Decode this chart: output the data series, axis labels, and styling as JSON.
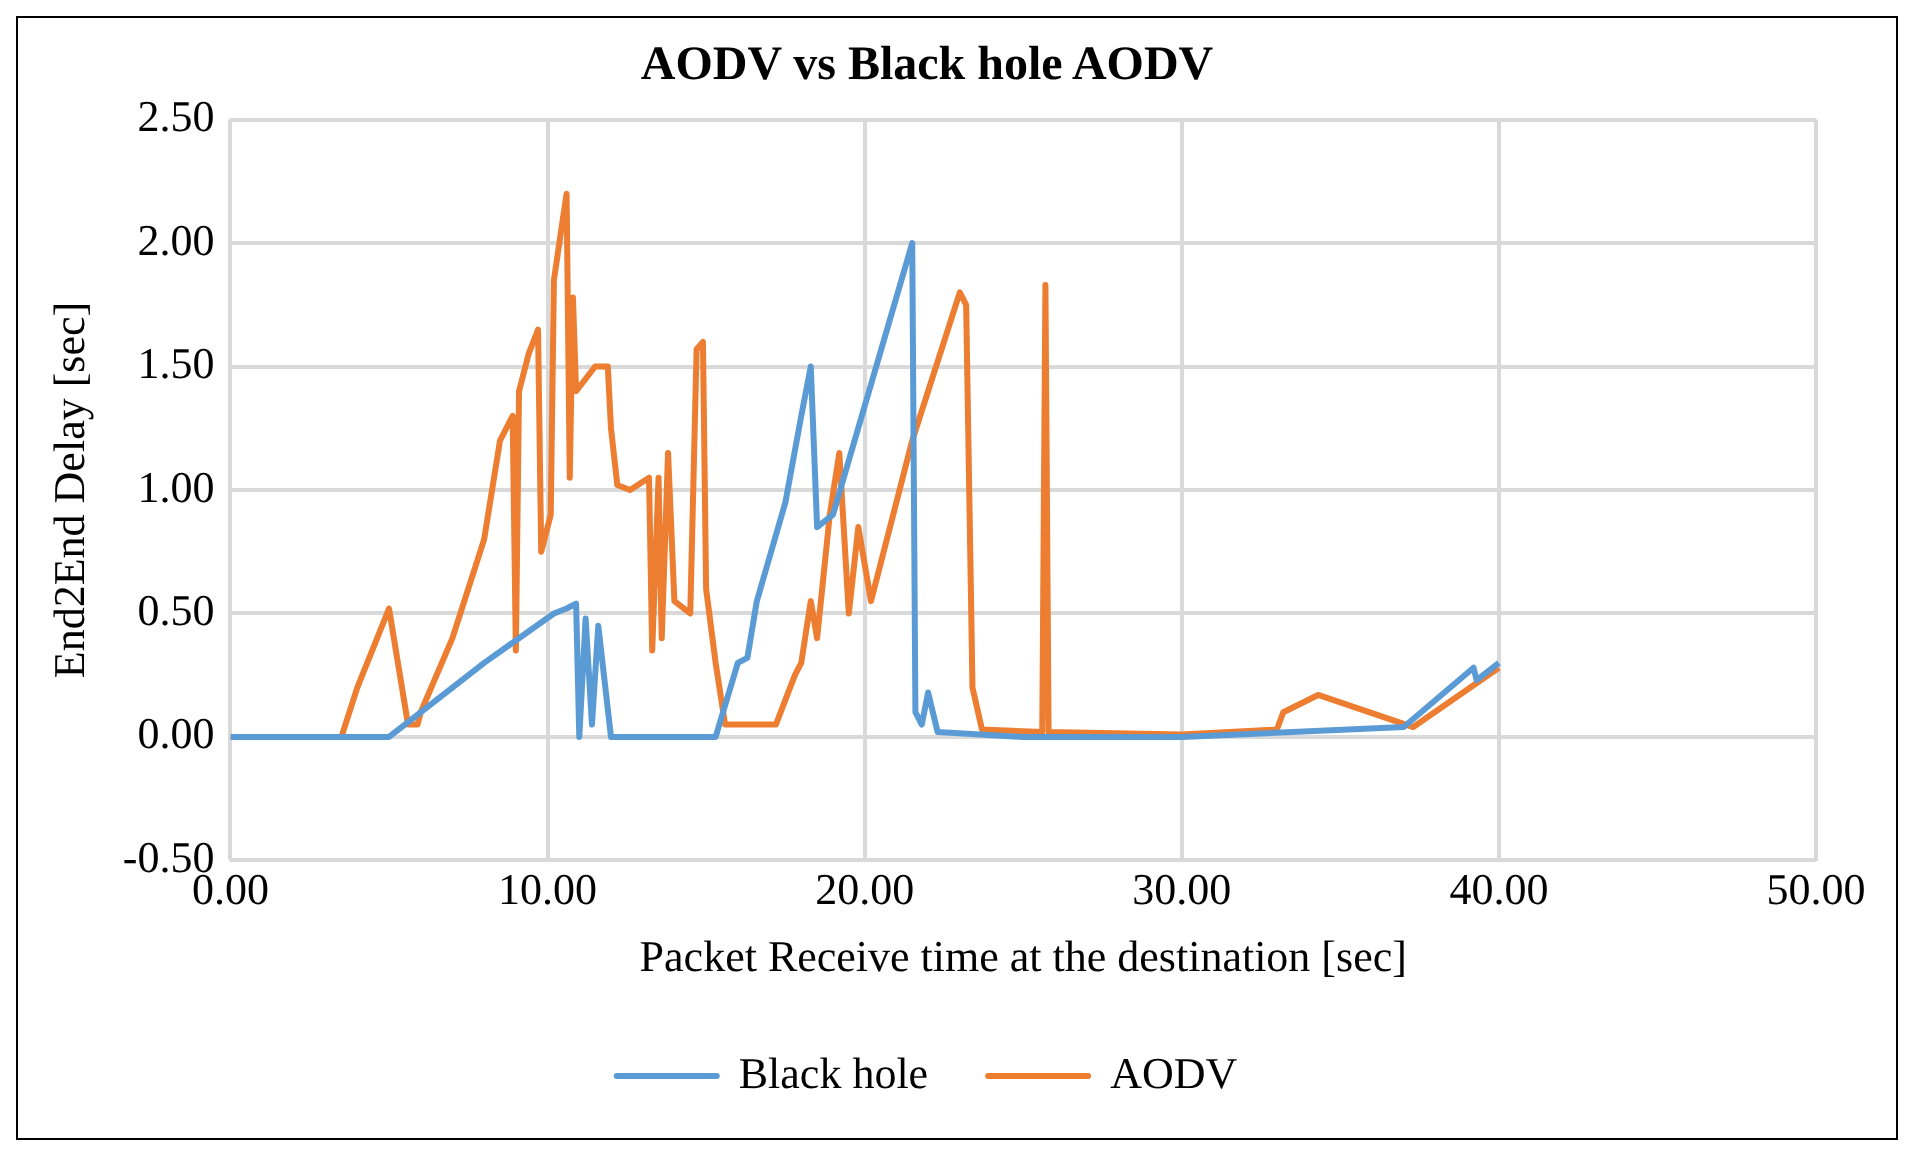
{
  "chart_data": {
    "type": "line",
    "title": "AODV vs Black hole AODV",
    "xlabel": "Packet Receive time at the destination [sec]",
    "ylabel": "End2End Delay [sec]",
    "xlim": [
      0,
      50
    ],
    "xticks": [
      {
        "value": 0,
        "label": "0.00"
      },
      {
        "value": 10,
        "label": "10.00"
      },
      {
        "value": 20,
        "label": "20.00"
      },
      {
        "value": 30,
        "label": "30.00"
      },
      {
        "value": 40,
        "label": "40.00"
      },
      {
        "value": 50,
        "label": "50.00"
      }
    ],
    "ylim": [
      -0.5,
      2.5
    ],
    "yticks": [
      {
        "value": -0.5,
        "label": "-0.50"
      },
      {
        "value": 0,
        "label": "0.00"
      },
      {
        "value": 0.5,
        "label": "0.50"
      },
      {
        "value": 1,
        "label": "1.00"
      },
      {
        "value": 1.5,
        "label": "1.50"
      },
      {
        "value": 2,
        "label": "2.00"
      },
      {
        "value": 2.5,
        "label": "2.50"
      }
    ],
    "grid": true,
    "legend": "bottom",
    "marker": "none",
    "series": [
      {
        "name": "Black hole",
        "color": "#5b9bd5",
        "x": [
          0,
          5.0,
          5.5,
          8,
          10.2,
          10.6,
          10.9,
          11.0,
          11.2,
          11.4,
          11.6,
          12.0,
          15.3,
          16.0,
          16.3,
          16.6,
          17.5,
          18.0,
          18.3,
          18.5,
          19.0,
          21.5,
          21.6,
          21.8,
          22.0,
          22.3,
          25,
          30,
          37,
          39.2,
          39.3,
          40
        ],
        "values": [
          0,
          0,
          0.05,
          0.3,
          0.5,
          0.52,
          0.54,
          0,
          0.48,
          0.05,
          0.45,
          0,
          0,
          0.3,
          0.32,
          0.55,
          0.95,
          1.3,
          1.5,
          0.85,
          0.9,
          2.0,
          0.1,
          0.05,
          0.18,
          0.02,
          0,
          0,
          0.04,
          0.28,
          0.23,
          0.3
        ]
      },
      {
        "name": "AODV",
        "color": "#ed7d31",
        "x": [
          0,
          3.5,
          4.0,
          5.0,
          5.6,
          5.9,
          6.0,
          7.0,
          8.0,
          8.5,
          8.9,
          9.0,
          9.1,
          9.4,
          9.7,
          9.8,
          10.1,
          10.2,
          10.6,
          10.7,
          10.8,
          10.9,
          11.5,
          11.9,
          12.0,
          12.2,
          12.6,
          13.2,
          13.3,
          13.5,
          13.6,
          13.8,
          14.0,
          14.5,
          14.7,
          14.9,
          15.0,
          15.3,
          15.6,
          17.2,
          17.5,
          17.8,
          18.0,
          18.3,
          18.5,
          18.9,
          19.2,
          19.5,
          19.8,
          20.2,
          20.8,
          21.5,
          22.0,
          22.5,
          23.0,
          23.2,
          23.4,
          23.7,
          25.6,
          25.7,
          25.8,
          30,
          33,
          33.2,
          34.3,
          37.3,
          40
        ],
        "values": [
          0,
          0,
          0.2,
          0.52,
          0.05,
          0.05,
          0.1,
          0.4,
          0.8,
          1.2,
          1.3,
          0.35,
          1.4,
          1.55,
          1.65,
          0.75,
          0.9,
          1.85,
          2.2,
          1.05,
          1.78,
          1.4,
          1.5,
          1.5,
          1.25,
          1.02,
          1.0,
          1.05,
          0.35,
          1.05,
          0.4,
          1.15,
          0.55,
          0.5,
          1.57,
          1.6,
          0.6,
          0.3,
          0.05,
          0.05,
          0.15,
          0.25,
          0.3,
          0.55,
          0.4,
          0.9,
          1.15,
          0.5,
          0.85,
          0.55,
          0.85,
          1.2,
          1.4,
          1.6,
          1.8,
          1.75,
          0.2,
          0.03,
          0.02,
          1.83,
          0.02,
          0.01,
          0.03,
          0.1,
          0.17,
          0.04,
          0.28
        ]
      }
    ]
  }
}
